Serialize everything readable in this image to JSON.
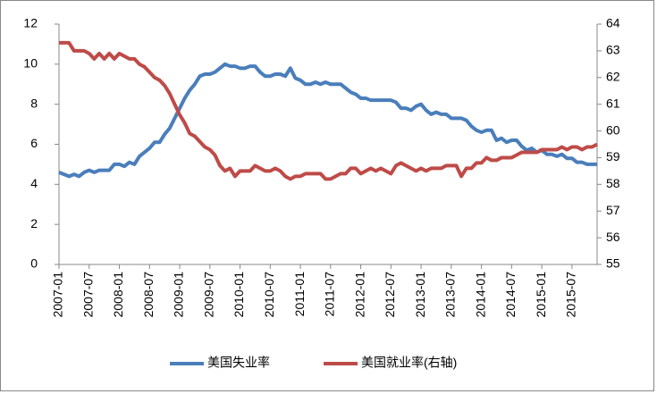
{
  "chart_data": {
    "type": "line",
    "categories": [
      "2007-01",
      null,
      null,
      null,
      null,
      null,
      "2007-07",
      null,
      null,
      null,
      null,
      null,
      "2008-01",
      null,
      null,
      null,
      null,
      null,
      "2008-07",
      null,
      null,
      null,
      null,
      null,
      "2009-01",
      null,
      null,
      null,
      null,
      null,
      "2009-07",
      null,
      null,
      null,
      null,
      null,
      "2010-01",
      null,
      null,
      null,
      null,
      null,
      "2010-07",
      null,
      null,
      null,
      null,
      null,
      "2011-01",
      null,
      null,
      null,
      null,
      null,
      "2011-07",
      null,
      null,
      null,
      null,
      null,
      "2012-01",
      null,
      null,
      null,
      null,
      null,
      "2012-07",
      null,
      null,
      null,
      null,
      null,
      "2013-01",
      null,
      null,
      null,
      null,
      null,
      "2013-07",
      null,
      null,
      null,
      null,
      null,
      "2014-01",
      null,
      null,
      null,
      null,
      null,
      "2014-07",
      null,
      null,
      null,
      null,
      null,
      "2015-01",
      null,
      null,
      null,
      null,
      null,
      "2015-07",
      null,
      null,
      null,
      null,
      null
    ],
    "series": [
      {
        "name": "美国失业率",
        "color": "#4a7ebb",
        "values": [
          4.6,
          4.5,
          4.4,
          4.5,
          4.4,
          4.6,
          4.7,
          4.6,
          4.7,
          4.7,
          4.7,
          5.0,
          5.0,
          4.9,
          5.1,
          5.0,
          5.4,
          5.6,
          5.8,
          6.1,
          6.1,
          6.5,
          6.8,
          7.3,
          7.8,
          8.3,
          8.7,
          9.0,
          9.4,
          9.5,
          9.5,
          9.6,
          9.8,
          10.0,
          9.9,
          9.9,
          9.8,
          9.8,
          9.9,
          9.9,
          9.6,
          9.4,
          9.4,
          9.5,
          9.5,
          9.4,
          9.8,
          9.3,
          9.2,
          9.0,
          9.0,
          9.1,
          9.0,
          9.1,
          9.0,
          9.0,
          9.0,
          8.8,
          8.6,
          8.5,
          8.3,
          8.3,
          8.2,
          8.2,
          8.2,
          8.2,
          8.2,
          8.1,
          7.8,
          7.8,
          7.7,
          7.9,
          8.0,
          7.7,
          7.5,
          7.6,
          7.5,
          7.5,
          7.3,
          7.3,
          7.3,
          7.2,
          6.9,
          6.7,
          6.6,
          6.7,
          6.7,
          6.2,
          6.3,
          6.1,
          6.2,
          6.2,
          5.9,
          5.7,
          5.8,
          5.6,
          5.7,
          5.5,
          5.5,
          5.4,
          5.5,
          5.3,
          5.3,
          5.1,
          5.1,
          5.0,
          5.0,
          5.0
        ]
      },
      {
        "name": "美国就业率(右轴)",
        "color": "#be4b48",
        "axis": "y2",
        "values": [
          63.3,
          63.3,
          63.3,
          63.0,
          63.0,
          63.0,
          62.9,
          62.7,
          62.9,
          62.7,
          62.9,
          62.7,
          62.9,
          62.8,
          62.7,
          62.7,
          62.5,
          62.4,
          62.2,
          62.0,
          61.9,
          61.7,
          61.4,
          61.0,
          60.6,
          60.3,
          59.9,
          59.8,
          59.6,
          59.4,
          59.3,
          59.1,
          58.7,
          58.5,
          58.6,
          58.3,
          58.5,
          58.5,
          58.5,
          58.7,
          58.6,
          58.5,
          58.5,
          58.6,
          58.5,
          58.3,
          58.2,
          58.3,
          58.3,
          58.4,
          58.4,
          58.4,
          58.4,
          58.2,
          58.2,
          58.3,
          58.4,
          58.4,
          58.6,
          58.6,
          58.4,
          58.5,
          58.6,
          58.5,
          58.6,
          58.5,
          58.4,
          58.7,
          58.8,
          58.7,
          58.6,
          58.5,
          58.6,
          58.5,
          58.6,
          58.6,
          58.6,
          58.7,
          58.7,
          58.7,
          58.3,
          58.6,
          58.6,
          58.8,
          58.8,
          59.0,
          58.9,
          58.9,
          59.0,
          59.0,
          59.0,
          59.1,
          59.2,
          59.2,
          59.2,
          59.2,
          59.3,
          59.3,
          59.3,
          59.3,
          59.4,
          59.3,
          59.4,
          59.4,
          59.3,
          59.4,
          59.4,
          59.5
        ]
      }
    ],
    "ylim": [
      0,
      12
    ],
    "yticks": [
      0,
      2,
      4,
      6,
      8,
      10,
      12
    ],
    "y2lim": [
      55,
      64
    ],
    "y2ticks": [
      55,
      56,
      57,
      58,
      59,
      60,
      61,
      62,
      63,
      64
    ],
    "legend": "bottom"
  }
}
